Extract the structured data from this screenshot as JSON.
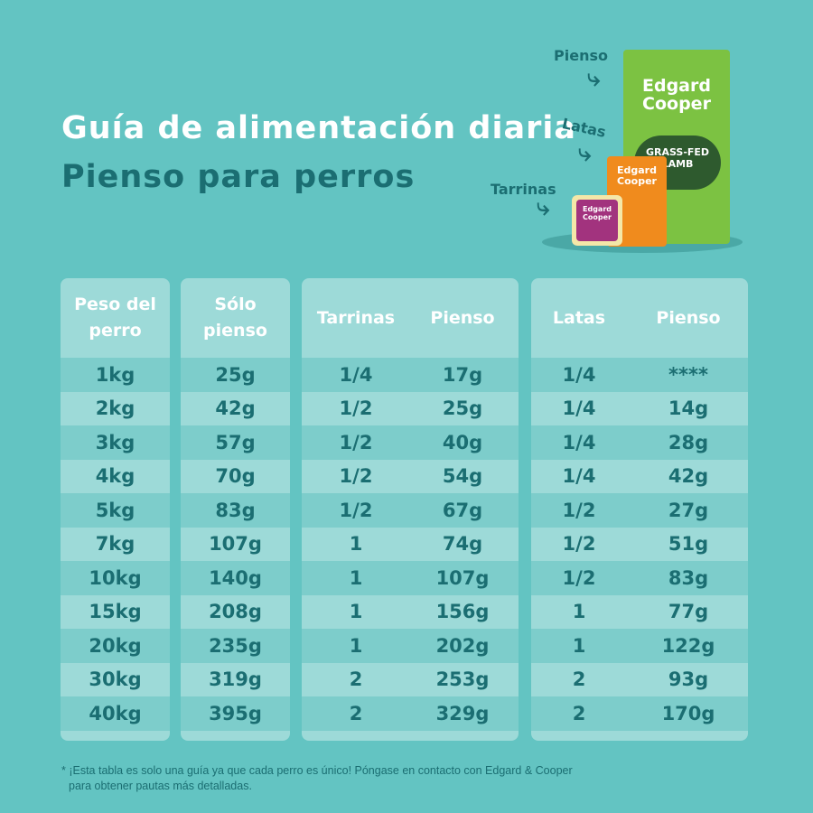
{
  "header": {
    "title": "Guía de alimentación diaria",
    "subtitle": "Pienso para perros"
  },
  "products": {
    "labels": {
      "bag": "Pienso",
      "can": "Latas",
      "tray": "Tarrinas"
    },
    "bag_brand": "Edgard Cooper",
    "bag_product": "GRASS-FED LAMB",
    "can_brand": "Edgard Cooper",
    "tray_brand": "Edgard Cooper",
    "colors": {
      "bag": "#7cc242",
      "can": "#f08b1d",
      "tray": "#a2337e"
    },
    "arrow_icon": "curved-arrow-icon"
  },
  "table": {
    "headers": {
      "weight": "Peso del perro",
      "dry_only": "Sólo pienso",
      "trays": "Tarrinas",
      "trays_dry": "Pienso",
      "cans": "Latas",
      "cans_dry": "Pienso"
    },
    "rows": [
      [
        "1kg",
        "25g",
        "1/4",
        "17g",
        "1/4",
        "****"
      ],
      [
        "2kg",
        "42g",
        "1/2",
        "25g",
        "1/4",
        "14g"
      ],
      [
        "3kg",
        "57g",
        "1/2",
        "40g",
        "1/4",
        "28g"
      ],
      [
        "4kg",
        "70g",
        "1/2",
        "54g",
        "1/4",
        "42g"
      ],
      [
        "5kg",
        "83g",
        "1/2",
        "67g",
        "1/2",
        "27g"
      ],
      [
        "7kg",
        "107g",
        "1",
        "74g",
        "1/2",
        "51g"
      ],
      [
        "10kg",
        "140g",
        "1",
        "107g",
        "1/2",
        "83g"
      ],
      [
        "15kg",
        "208g",
        "1",
        "156g",
        "1",
        "77g"
      ],
      [
        "20kg",
        "235g",
        "1",
        "202g",
        "1",
        "122g"
      ],
      [
        "30kg",
        "319g",
        "2",
        "253g",
        "2",
        "93g"
      ],
      [
        "40kg",
        "395g",
        "2",
        "329g",
        "2",
        "170g"
      ]
    ]
  },
  "footnote": {
    "line1": "* ¡Esta tabla es solo una guía ya que cada perro es único! Póngase en contacto con Edgard & Cooper",
    "line2": "para obtener pautas más detalladas."
  },
  "colors": {
    "background": "#63c4c2",
    "accent": "#1b6e72",
    "row_dark": "#7dcdcb",
    "row_light": "#9ddad8"
  }
}
